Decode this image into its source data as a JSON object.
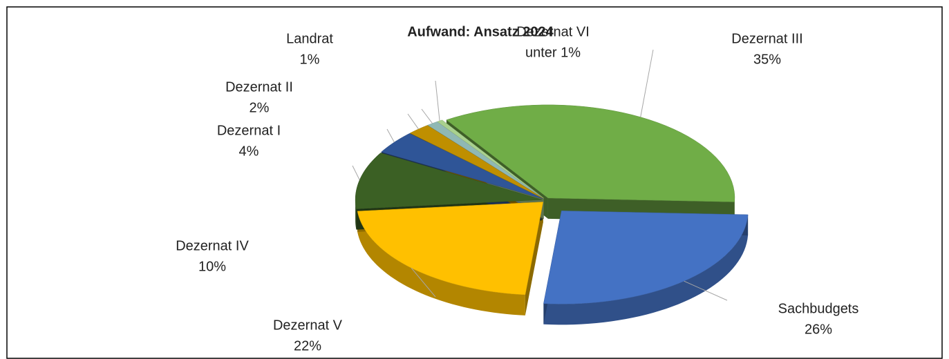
{
  "chart_data": {
    "type": "pie",
    "title": "Aufwand: Ansatz 2024",
    "categories": [
      "Dezernat III",
      "Sachbudgets",
      "Dezernat V",
      "Dezernat IV",
      "Dezernat I",
      "Dezernat II",
      "Landrat",
      "Dezernat VI"
    ],
    "values": [
      35,
      26,
      22,
      10,
      4,
      2,
      1,
      0.5
    ],
    "value_labels": [
      "35%",
      "26%",
      "22%",
      "10%",
      "4%",
      "2%",
      "1%",
      "unter 1%"
    ],
    "colors": [
      "#70ad47",
      "#4472c4",
      "#ffc000",
      "#3b6024",
      "#2f5597",
      "#bf8f00",
      "#8fb8b4",
      "#a9d18e"
    ]
  }
}
